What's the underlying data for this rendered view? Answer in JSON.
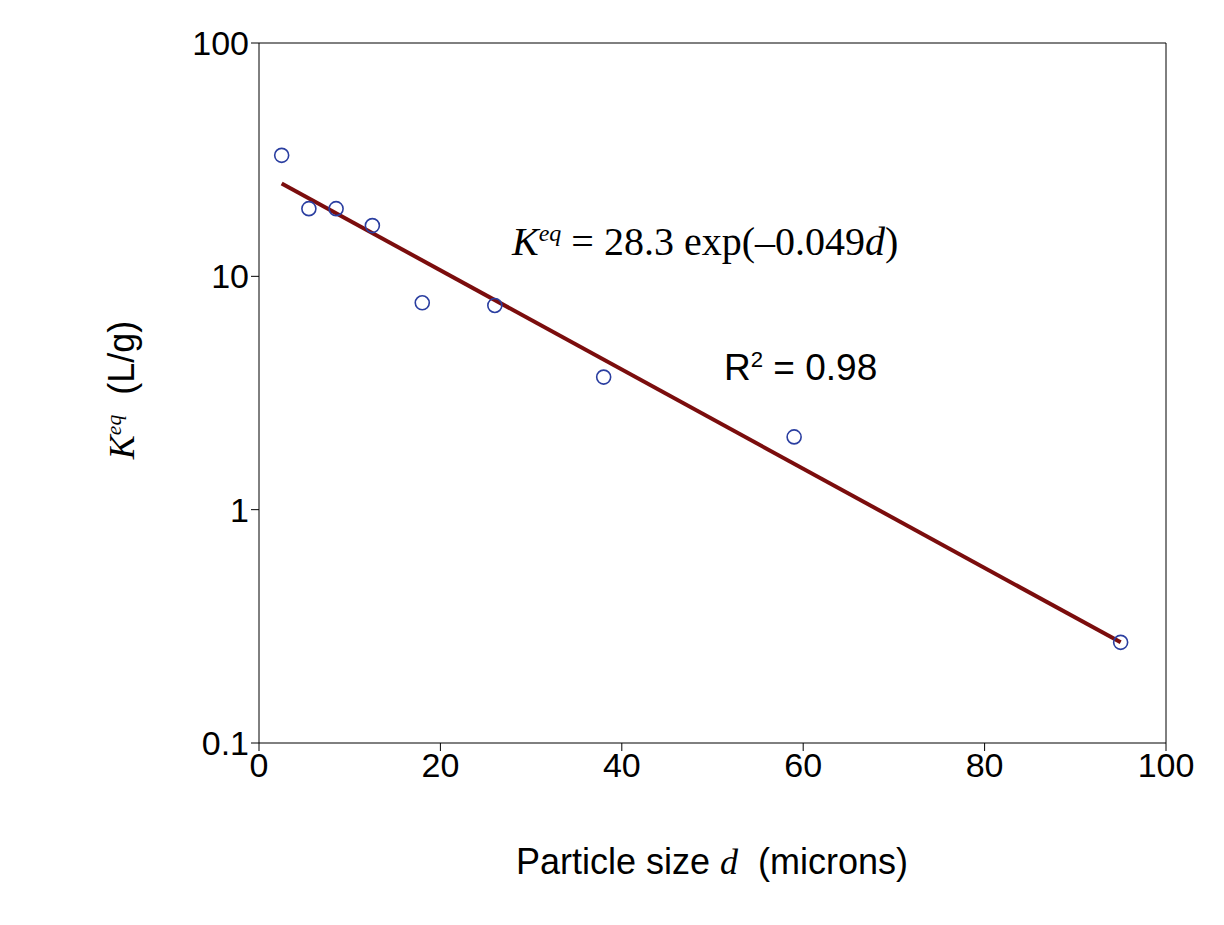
{
  "chart_data": {
    "type": "scatter",
    "log": "y",
    "grid": false,
    "tick_labels": true,
    "x_label": [
      {
        "text": "Particle size ",
        "style": "sans"
      },
      {
        "text": "d",
        "style": "serif_italic"
      },
      {
        "text": "  (microns)",
        "style": "sans"
      }
    ],
    "y_label": [
      {
        "text": "K",
        "style": "serif_italic"
      },
      {
        "text": "eq",
        "style": "serif_italic_sup"
      },
      {
        "text": "  (L/g)",
        "style": "sans"
      }
    ],
    "xlim": [
      0,
      100
    ],
    "xticks": [
      0,
      20,
      40,
      60,
      80,
      100
    ],
    "ylim": [
      0.1,
      100
    ],
    "yticks": [
      0.1,
      1,
      10,
      100
    ],
    "series": [
      {
        "type": "scatter",
        "color": "#2a3ea0",
        "marker": "circle",
        "x": [
          2.5,
          5.5,
          8.5,
          12.5,
          18,
          26,
          38,
          59,
          95
        ],
        "values": [
          33,
          19.5,
          19.5,
          16.5,
          7.7,
          7.5,
          3.7,
          2.05,
          0.27
        ]
      },
      {
        "type": "line",
        "color": "#7b0d0d",
        "line_style": "solid",
        "x": [
          2.5,
          95
        ],
        "values": [
          25.0,
          0.27
        ]
      }
    ],
    "annotations": [
      {
        "parts": [
          {
            "text": "K",
            "style": "serif_italic"
          },
          {
            "text": "eq",
            "style": "serif_italic_sup"
          },
          {
            "text": " = 28.3 exp(–0.049",
            "style": "serif"
          },
          {
            "text": "d",
            "style": "serif_italic"
          },
          {
            "text": ")",
            "style": "serif"
          }
        ]
      },
      {
        "parts": [
          {
            "text": "R",
            "style": "sans"
          },
          {
            "text": "2",
            "style": "sans_sup"
          },
          {
            "text": " = 0.98",
            "style": "sans"
          }
        ]
      }
    ]
  }
}
